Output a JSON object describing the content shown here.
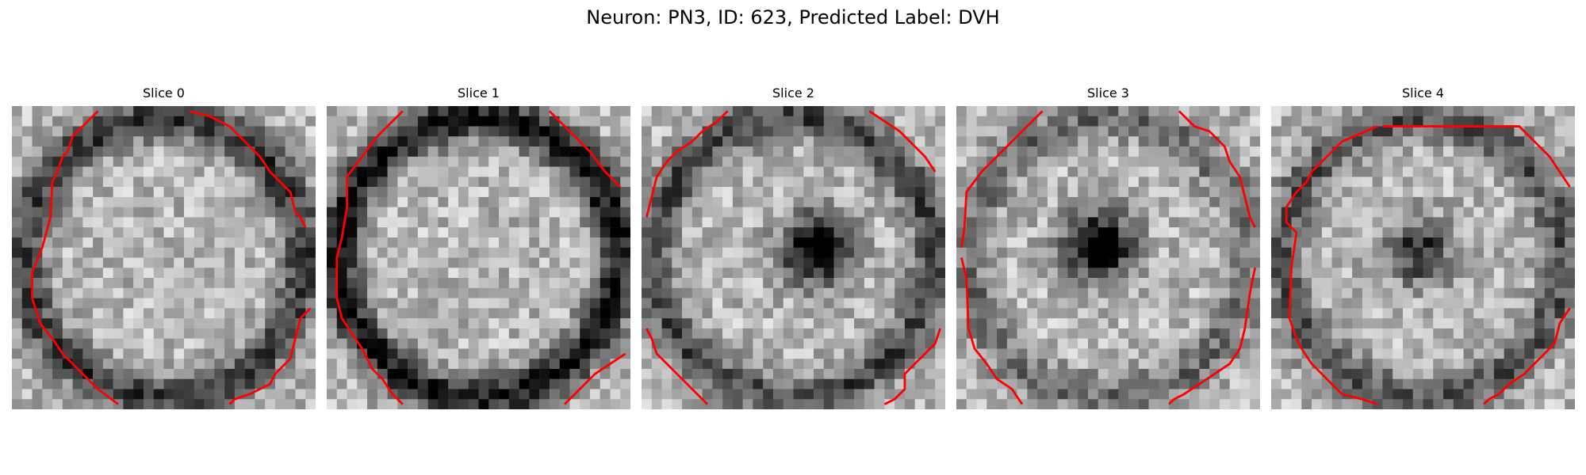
{
  "figure": {
    "title": "Neuron: PN3, ID: 623, Predicted Label: DVH"
  },
  "panels": [
    {
      "title": "Slice 0"
    },
    {
      "title": "Slice 1"
    },
    {
      "title": "Slice 2"
    },
    {
      "title": "Slice 3"
    },
    {
      "title": "Slice 4"
    }
  ],
  "colors": {
    "contour": "#ff0000",
    "colormap": "grayscale"
  }
}
